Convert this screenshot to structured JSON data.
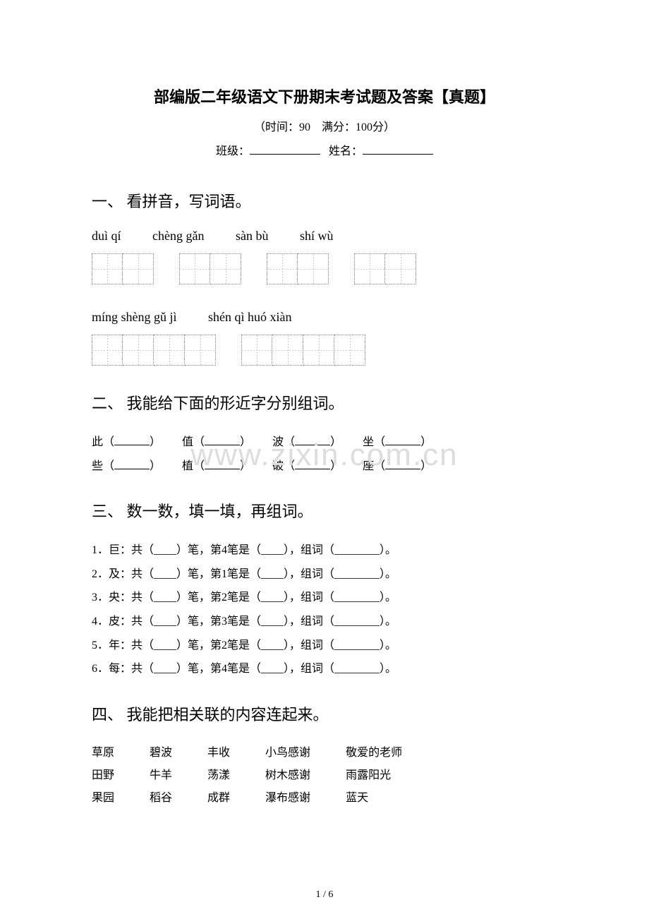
{
  "doc": {
    "title": "部编版二年级语文下册期末考试题及答案【真题】",
    "subtitle": "（时间：90　满分：100分）",
    "class_label": "班级：",
    "name_label": "姓名：",
    "footer": "1 / 6",
    "watermark": "www.zixin.com.cn"
  },
  "section1": {
    "heading": "一、 看拼音，写词语。",
    "pinyin_row1": [
      "duì  qí",
      "chèng gǎn",
      "sàn  bù",
      "shí  wù"
    ],
    "pinyin_row2": [
      "míng shèng  gǔ  jì",
      "shén  qì   huó  xiàn"
    ],
    "boxes_row1": [
      2,
      2,
      2,
      2
    ],
    "boxes_row2": [
      4,
      4
    ]
  },
  "section2": {
    "heading": "二、 我能给下面的形近字分别组词。",
    "rows": [
      [
        "此（",
        "）",
        "值（",
        "）",
        "波（",
        "）",
        "坐（",
        "）"
      ],
      [
        "些（",
        "）",
        "植（",
        "）",
        "破（",
        "）",
        "座（",
        "）"
      ]
    ]
  },
  "section3": {
    "heading": "三、 数一数，填一填，再组词。",
    "items": [
      "1．巨：共（____）笔，第4笔是（____），组词（________）。",
      "2．及：共（____）笔，第1笔是（____），组词（________）。",
      "3．央：共（____）笔，第2笔是（____），组词（________）。",
      "4．皮：共（____）笔，第3笔是（____），组词（________）。",
      "5．年：共（____）笔，第2笔是（____），组词（________）。",
      "6．每：共（____）笔，第4笔是（____），组词（________）。"
    ]
  },
  "section4": {
    "heading": "四、 我能把相关联的内容连起来。",
    "columns": [
      [
        "草原",
        "田野",
        "果园"
      ],
      [
        "碧波",
        "牛羊",
        "稻谷"
      ],
      [
        "丰收",
        "荡漾",
        "成群"
      ],
      [
        "小鸟感谢",
        "树木感谢",
        "瀑布感谢"
      ],
      [
        "敬爱的老师",
        "雨露阳光",
        "蓝天"
      ]
    ]
  }
}
